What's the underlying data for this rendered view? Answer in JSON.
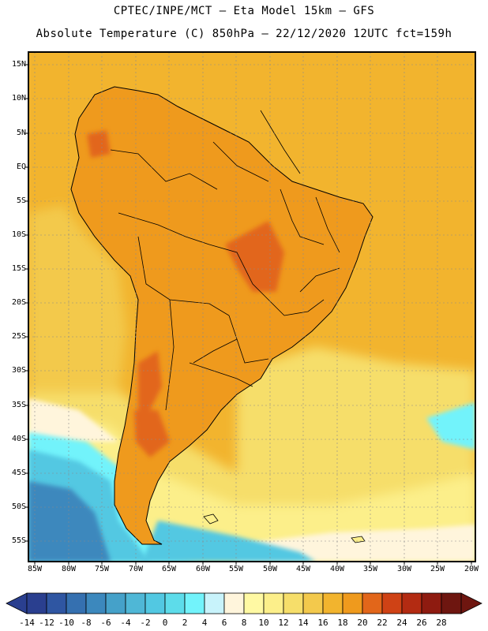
{
  "title_line1": "CPTEC/INPE/MCT —  Eta Model 15km — GFS",
  "title_line2": "Absolute Temperature (C) 850hPa — 22/12/2020 12UTC fct=159h",
  "lat_labels": [
    "15N",
    "10N",
    "5N",
    "EQ",
    "5S",
    "10S",
    "15S",
    "20S",
    "25S",
    "30S",
    "35S",
    "40S",
    "45S",
    "50S",
    "55S"
  ],
  "lon_labels": [
    "85W",
    "80W",
    "75W",
    "70W",
    "65W",
    "60W",
    "55W",
    "50W",
    "45W",
    "40W",
    "35W",
    "30W",
    "25W",
    "20W"
  ],
  "colorbar": {
    "labels": [
      "-14",
      "-12",
      "-10",
      "-8",
      "-6",
      "-4",
      "-2",
      "0",
      "2",
      "4",
      "6",
      "8",
      "10",
      "12",
      "14",
      "16",
      "18",
      "20",
      "22",
      "24",
      "26",
      "28"
    ],
    "colors": [
      "#2a3f8f",
      "#2f56a2",
      "#3570b0",
      "#3c88bd",
      "#45a1c9",
      "#4fb7d6",
      "#52c8e2",
      "#5ddcea",
      "#72f3fb",
      "#c8f3fb",
      "#fff5dc",
      "#fff9a3",
      "#fcef8a",
      "#f6de6a",
      "#f3c94c",
      "#f2b42e",
      "#ef9a1d",
      "#e2661a",
      "#cf4215",
      "#b32b12",
      "#8e1b10",
      "#6e1610"
    ]
  },
  "map_colors": {
    "ocean_warm": "#f2b42e",
    "ocean_mid": "#f3c94c",
    "ocean_light": "#f6de6a",
    "ocean_pale": "#fcef8a",
    "cream": "#fff5dc",
    "cyan": "#72f3fb",
    "teal": "#52c8e2",
    "blue": "#3c88bd",
    "land_orange": "#ef9a1d",
    "land_dark": "#e2661a",
    "border": "#000000"
  }
}
